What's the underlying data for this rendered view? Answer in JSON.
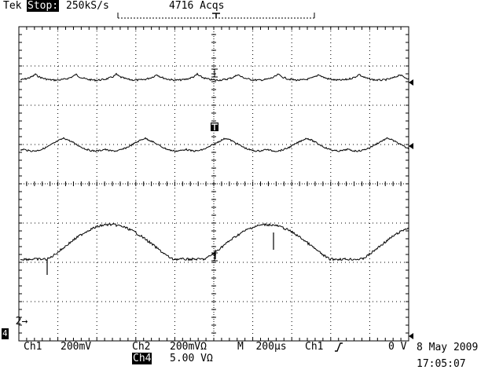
{
  "header": {
    "brand": "Tek",
    "run_state": "Stop:",
    "sample_rate": "250kS/s",
    "acqs": "4716 Acqs"
  },
  "markers": {
    "ch2_ref": "2",
    "ch4_ref": "4"
  },
  "footer": {
    "ch1_label": "Ch1",
    "ch1_scale": "200mV",
    "ch2_label": "Ch2",
    "ch2_scale": "200mVΩ",
    "timebase": "M  200μs",
    "trigger_src": "Ch1",
    "trigger_level": "0 V",
    "ch4_label": "Ch4",
    "ch4_scale": "5.00 VΩ",
    "date": "8 May 2009",
    "time": "17:05:07"
  },
  "colors": {
    "trace": "#000000",
    "graticule": "#000000",
    "background": "#ffffff"
  }
}
